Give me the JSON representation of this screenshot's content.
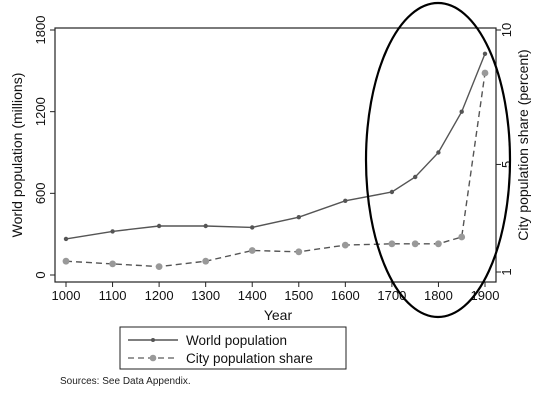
{
  "chart_data": {
    "type": "line",
    "x": [
      1000,
      1100,
      1200,
      1300,
      1400,
      1500,
      1600,
      1700,
      1750,
      1800,
      1850,
      1900
    ],
    "series": [
      {
        "name": "World population",
        "axis": "left",
        "style": "solid",
        "color": "#555555",
        "values": [
          265,
          320,
          360,
          360,
          350,
          425,
          545,
          610,
          720,
          900,
          1200,
          1625
        ]
      },
      {
        "name": "City population share",
        "axis": "right",
        "style": "dashed",
        "color": "#999999",
        "values": [
          1.4,
          1.3,
          1.2,
          1.4,
          1.8,
          1.75,
          2.0,
          2.05,
          2.05,
          2.05,
          2.3,
          8.4
        ]
      }
    ],
    "xlabel": "Year",
    "ylabel": "World population (millions)",
    "y2label": "City population share (percent)",
    "xlim": [
      1000,
      1900
    ],
    "ylim": [
      0,
      1800
    ],
    "y2lim": [
      1,
      10
    ],
    "xticks": [
      1000,
      1100,
      1200,
      1300,
      1400,
      1500,
      1600,
      1700,
      1800,
      1900
    ],
    "yticks": [
      0,
      600,
      1200,
      1800
    ],
    "y2ticks": [
      1,
      5,
      10
    ],
    "grid": false,
    "legend_position": "bottom",
    "annotation": "ellipse highlighting 1700–1900",
    "source_note": "Sources: See Data Appendix."
  }
}
